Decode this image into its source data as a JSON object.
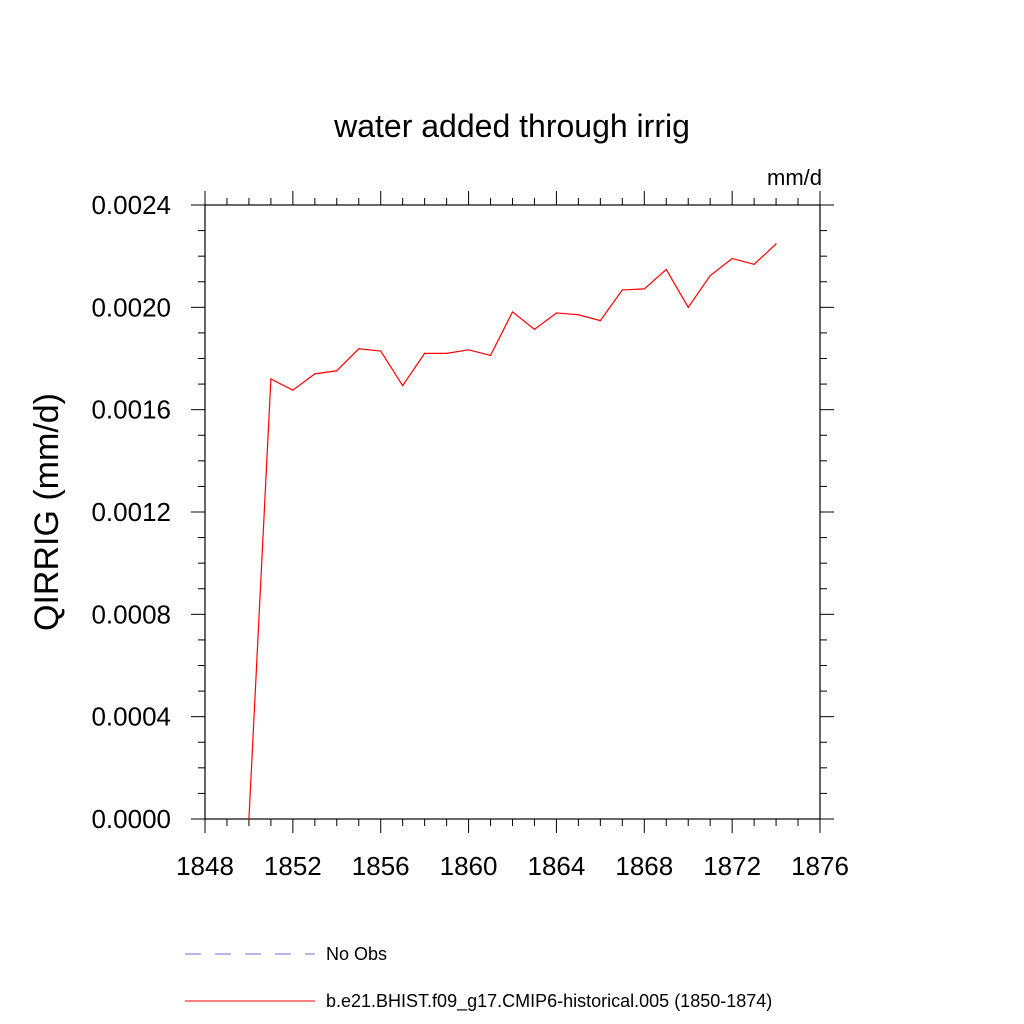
{
  "chart_data": {
    "type": "line",
    "title": "water added through irrig",
    "ylabel": "QIRRIG  (mm/d)",
    "units_label": "mm/d",
    "xlim": [
      1848,
      1876
    ],
    "ylim": [
      0.0,
      0.0024
    ],
    "x_ticks": [
      "1848",
      "1852",
      "1856",
      "1860",
      "1864",
      "1868",
      "1872",
      "1876"
    ],
    "y_ticks": [
      "0.0000",
      "0.0004",
      "0.0008",
      "0.0012",
      "0.0016",
      "0.0020",
      "0.0024"
    ],
    "grid": false,
    "legend_position": "bottom",
    "series": [
      {
        "name": "b.e21.BHIST.f09_g17.CMIP6-historical.005 (1850-1874)",
        "color": "#ff0000",
        "style": "solid",
        "x": [
          1850,
          1851,
          1852,
          1853,
          1854,
          1855,
          1856,
          1857,
          1858,
          1859,
          1860,
          1861,
          1862,
          1863,
          1864,
          1865,
          1866,
          1867,
          1868,
          1869,
          1870,
          1871,
          1872,
          1873,
          1874
        ],
        "values": [
          0.0,
          0.00172,
          0.001676,
          0.00174,
          0.001752,
          0.001838,
          0.001829,
          0.001694,
          0.00182,
          0.00182,
          0.001834,
          0.001812,
          0.001982,
          0.001914,
          0.001978,
          0.001971,
          0.001948,
          0.002068,
          0.002072,
          0.002148,
          0.002,
          0.002124,
          0.002191,
          0.002168,
          0.002248
        ]
      }
    ],
    "legend": [
      {
        "label": "No Obs",
        "color": "#7b68d8",
        "style": "dashed"
      },
      {
        "label": "b.e21.BHIST.f09_g17.CMIP6-historical.005 (1850-1874)",
        "color": "#ff0000",
        "style": "solid"
      }
    ]
  }
}
